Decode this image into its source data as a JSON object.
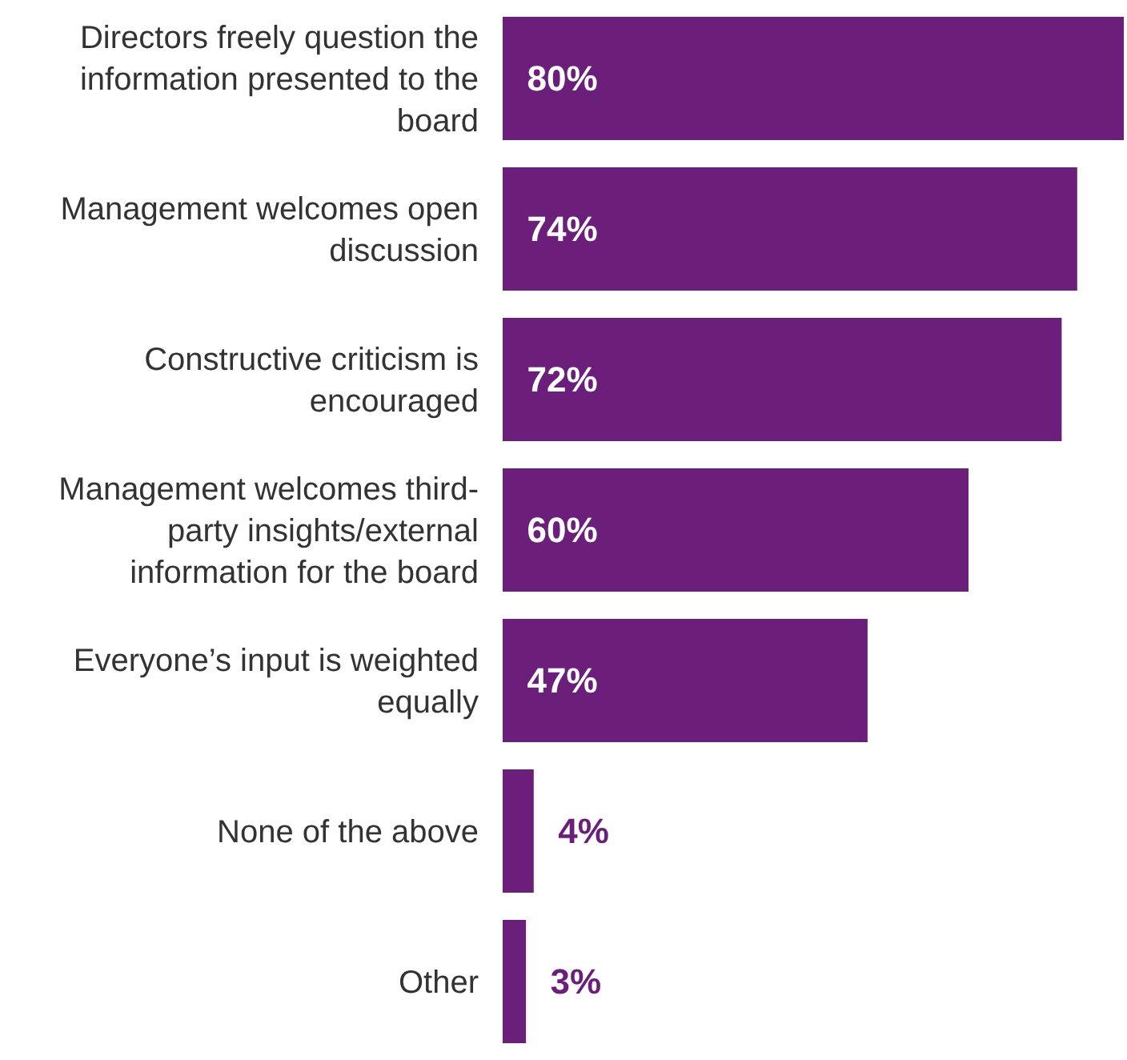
{
  "chart_data": {
    "type": "bar",
    "orientation": "horizontal",
    "data_labels": true,
    "categories": [
      "Directors freely question the information presented to the board",
      "Management welcomes open discussion",
      "Constructive criticism is encouraged",
      "Management welcomes third-party insights/external information for the board",
      "Everyone’s input is weighted equally",
      "None of the above",
      "Other"
    ],
    "values": [
      80,
      74,
      72,
      60,
      47,
      4,
      3
    ],
    "value_labels": [
      "80%",
      "74%",
      "72%",
      "60%",
      "47%",
      "4%",
      "3%"
    ],
    "color": "#6b1f7a"
  }
}
